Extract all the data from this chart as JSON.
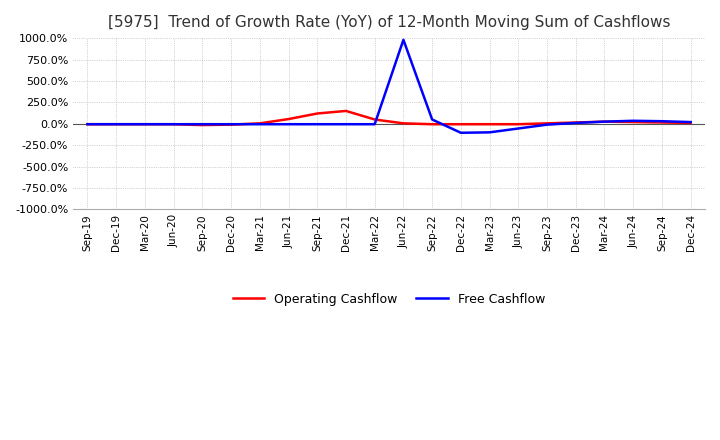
{
  "title": "[5975]  Trend of Growth Rate (YoY) of 12-Month Moving Sum of Cashflows",
  "title_fontsize": 11,
  "ylim": [
    -1000,
    1000
  ],
  "yticks": [
    -1000,
    -750,
    -500,
    -250,
    0,
    250,
    500,
    750,
    1000
  ],
  "ytick_labels": [
    "-1000.0%",
    "-750.0%",
    "-500.0%",
    "-250.0%",
    "0.0%",
    "250.0%",
    "500.0%",
    "750.0%",
    "1000.0%"
  ],
  "x_labels": [
    "Sep-19",
    "Dec-19",
    "Mar-20",
    "Jun-20",
    "Sep-20",
    "Dec-20",
    "Mar-21",
    "Jun-21",
    "Sep-21",
    "Dec-21",
    "Mar-22",
    "Jun-22",
    "Sep-22",
    "Dec-22",
    "Mar-23",
    "Jun-23",
    "Sep-23",
    "Dec-23",
    "Mar-24",
    "Jun-24",
    "Sep-24",
    "Dec-24"
  ],
  "operating_cashflow": [
    -5,
    -5,
    -5,
    -5,
    -15,
    -10,
    5,
    55,
    120,
    150,
    50,
    5,
    -5,
    -5,
    -5,
    -5,
    5,
    15,
    25,
    20,
    15,
    10
  ],
  "free_cashflow": [
    -5,
    -5,
    -5,
    -5,
    -5,
    -5,
    -5,
    -5,
    -5,
    -5,
    -5,
    980,
    50,
    -105,
    -100,
    -55,
    -10,
    10,
    25,
    35,
    30,
    20
  ],
  "op_color": "#ff0000",
  "free_color": "#0000ff",
  "grid_color": "#aaaaaa",
  "bg_color": "#ffffff",
  "op_label": "Operating Cashflow",
  "free_label": "Free Cashflow",
  "line_width": 1.8
}
